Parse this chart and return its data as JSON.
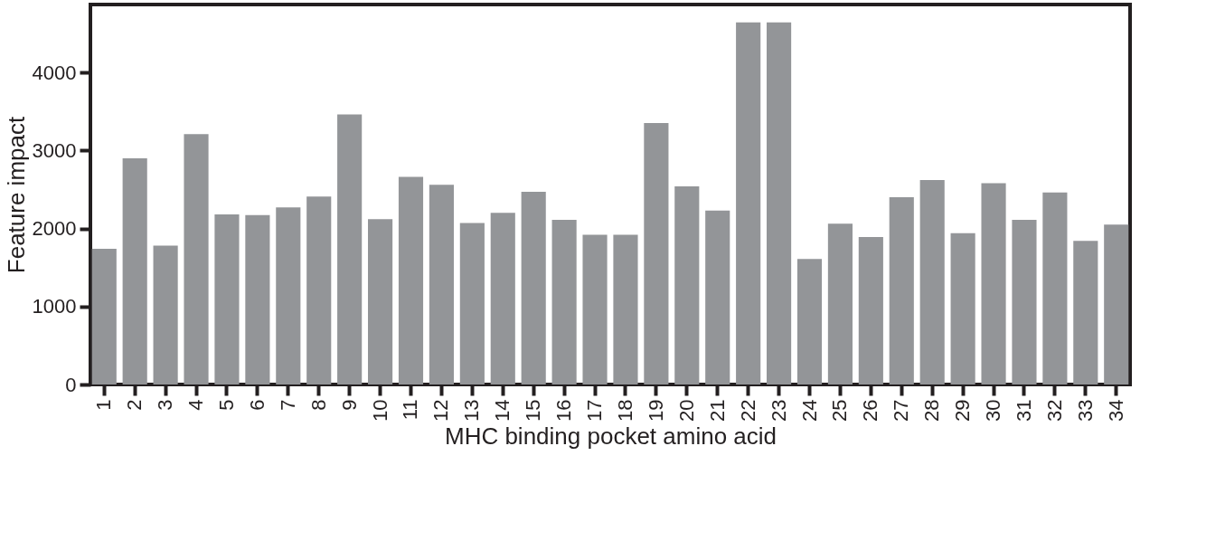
{
  "chart_data": {
    "type": "bar",
    "xlabel": "MHC binding pocket amino acid",
    "ylabel": "Feature impact",
    "categories": [
      "1",
      "2",
      "3",
      "4",
      "5",
      "6",
      "7",
      "8",
      "9",
      "10",
      "11",
      "12",
      "13",
      "14",
      "15",
      "16",
      "17",
      "18",
      "19",
      "20",
      "21",
      "22",
      "23",
      "24",
      "25",
      "26",
      "27",
      "28",
      "29",
      "30",
      "31",
      "32",
      "33",
      "34"
    ],
    "values": [
      1740,
      2900,
      1780,
      3210,
      2180,
      2170,
      2270,
      2410,
      3460,
      2120,
      2660,
      2560,
      2070,
      2200,
      2470,
      2110,
      1920,
      1920,
      3350,
      2540,
      2230,
      4640,
      4640,
      1610,
      2060,
      1890,
      2400,
      2620,
      1940,
      2580,
      2110,
      2460,
      1840,
      2050
    ],
    "color": "#939598",
    "ylim": [
      0,
      4870
    ],
    "yticks": [
      0,
      1000,
      2000,
      3000,
      4000
    ],
    "grid": false
  }
}
